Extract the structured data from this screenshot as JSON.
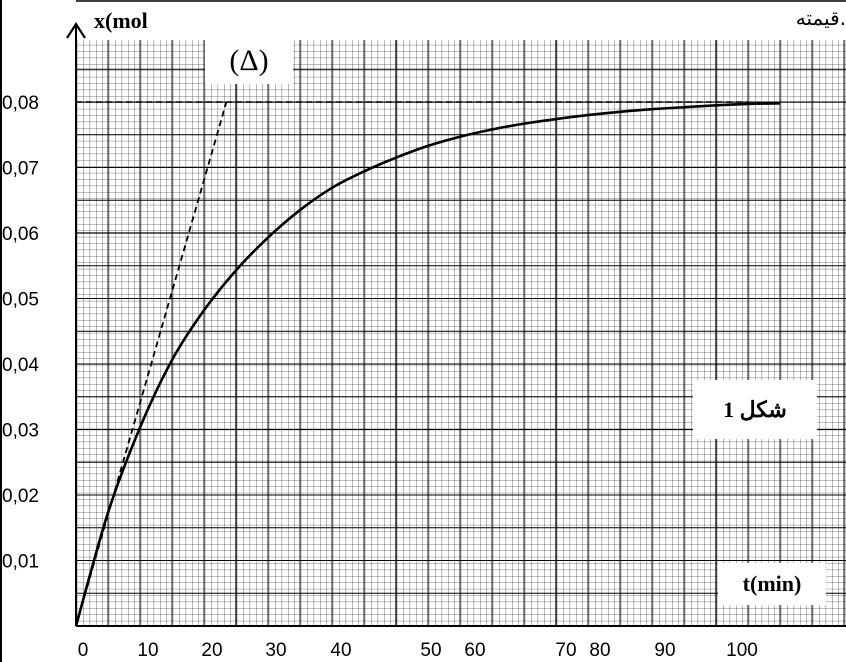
{
  "header_text": "قيمته.",
  "chart_data": {
    "type": "line",
    "ylabel": "x(mol",
    "xlabel": "t(min)",
    "figure_label": "شكل 1",
    "tangent_label": "(Δ)",
    "x_tick_labels": [
      "0",
      "10",
      "20",
      "30",
      "40",
      "50",
      "60",
      "70",
      "80",
      "90",
      "100"
    ],
    "y_tick_labels": [
      "0,01",
      "0,02",
      "0,03",
      "0,04",
      "0,05",
      "0,06",
      "0,07",
      "0,08"
    ],
    "y_ticks": [
      0.01,
      0.02,
      0.03,
      0.04,
      0.05,
      0.06,
      0.07,
      0.08
    ],
    "xlim": [
      0,
      110
    ],
    "ylim": [
      0,
      0.09
    ],
    "grid": true,
    "series": [
      {
        "curve": "x(t)",
        "x": [
          0,
          5,
          10,
          15,
          20,
          25,
          30,
          35,
          40,
          45,
          50,
          55,
          60,
          65,
          70,
          75,
          80,
          85,
          90,
          95,
          100,
          105,
          110
        ],
        "values": [
          0,
          0.0173,
          0.0303,
          0.0406,
          0.0482,
          0.0543,
          0.0593,
          0.0635,
          0.0669,
          0.0694,
          0.0715,
          0.0733,
          0.0747,
          0.0758,
          0.0767,
          0.0774,
          0.078,
          0.0785,
          0.0789,
          0.0792,
          0.0795,
          0.0797,
          0.0798
        ]
      }
    ],
    "tangent": {
      "x": [
        0,
        23.5
      ],
      "y": [
        0,
        0.08
      ]
    },
    "asymptote": {
      "y": 0.08,
      "from_x": 0,
      "to_x": 110
    }
  }
}
